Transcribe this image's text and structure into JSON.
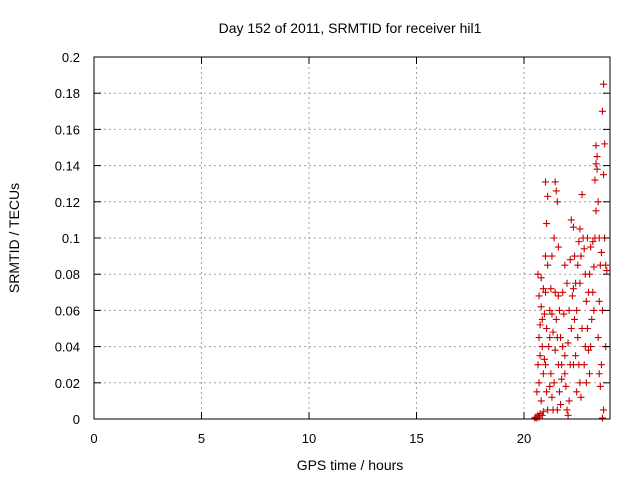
{
  "chart_data": {
    "type": "scatter",
    "title": "Day 152 of 2011, SRMTID for receiver hil1",
    "xlabel": "GPS time / hours",
    "ylabel": "SRMTID / TECUs",
    "xlim": [
      0,
      24
    ],
    "ylim": [
      0,
      0.2
    ],
    "x_ticks": [
      0,
      5,
      10,
      15,
      20
    ],
    "y_ticks": [
      0,
      0.02,
      0.04,
      0.06,
      0.08,
      0.1,
      0.12,
      0.14,
      0.16,
      0.18,
      0.2
    ],
    "grid": true,
    "marker": "+",
    "color": "#cc0000",
    "series": [
      {
        "points": [
          [
            20.5,
            0.0
          ],
          [
            20.55,
            0.001
          ],
          [
            20.6,
            0.0
          ],
          [
            20.65,
            0.002
          ],
          [
            20.7,
            0.001
          ],
          [
            20.75,
            0.003
          ],
          [
            20.85,
            0.002
          ],
          [
            20.9,
            0.004
          ],
          [
            20.6,
            0.015
          ],
          [
            20.65,
            0.03
          ],
          [
            20.7,
            0.045
          ],
          [
            20.75,
            0.052
          ],
          [
            20.8,
            0.062
          ],
          [
            20.7,
            0.068
          ],
          [
            20.65,
            0.08
          ],
          [
            20.8,
            0.078
          ],
          [
            20.9,
            0.072
          ],
          [
            20.95,
            0.058
          ],
          [
            20.85,
            0.04
          ],
          [
            20.9,
            0.025
          ],
          [
            20.7,
            0.02
          ],
          [
            20.8,
            0.01
          ],
          [
            20.75,
            0.035
          ],
          [
            20.85,
            0.055
          ],
          [
            21.0,
            0.131
          ],
          [
            21.1,
            0.123
          ],
          [
            21.05,
            0.108
          ],
          [
            21.0,
            0.09
          ],
          [
            21.1,
            0.085
          ],
          [
            21.0,
            0.07
          ],
          [
            21.05,
            0.05
          ],
          [
            21.0,
            0.03
          ],
          [
            21.05,
            0.015
          ],
          [
            21.1,
            0.005
          ],
          [
            21.15,
            0.04
          ],
          [
            21.2,
            0.06
          ],
          [
            21.25,
            0.072
          ],
          [
            21.3,
            0.058
          ],
          [
            21.2,
            0.045
          ],
          [
            21.25,
            0.025
          ],
          [
            21.3,
            0.012
          ],
          [
            21.35,
            0.005
          ],
          [
            21.4,
            0.02
          ],
          [
            21.45,
            0.038
          ],
          [
            21.5,
            0.055
          ],
          [
            21.45,
            0.07
          ],
          [
            21.5,
            0.126
          ],
          [
            21.45,
            0.131
          ],
          [
            21.55,
            0.12
          ],
          [
            21.6,
            0.068
          ],
          [
            21.55,
            0.045
          ],
          [
            21.6,
            0.03
          ],
          [
            21.65,
            0.015
          ],
          [
            21.7,
            0.008
          ],
          [
            21.75,
            0.022
          ],
          [
            21.8,
            0.04
          ],
          [
            21.85,
            0.058
          ],
          [
            21.9,
            0.035
          ],
          [
            21.95,
            0.018
          ],
          [
            22.0,
            0.005
          ],
          [
            22.05,
            0.002
          ],
          [
            22.1,
            0.01
          ],
          [
            22.15,
            0.03
          ],
          [
            22.2,
            0.05
          ],
          [
            22.25,
            0.068
          ],
          [
            22.3,
            0.072
          ],
          [
            22.2,
            0.11
          ],
          [
            22.3,
            0.106
          ],
          [
            22.35,
            0.09
          ],
          [
            22.4,
            0.075
          ],
          [
            22.45,
            0.06
          ],
          [
            22.5,
            0.045
          ],
          [
            22.55,
            0.03
          ],
          [
            22.6,
            0.02
          ],
          [
            22.65,
            0.012
          ],
          [
            22.5,
            0.085
          ],
          [
            22.55,
            0.098
          ],
          [
            22.6,
            0.105
          ],
          [
            22.65,
            0.09
          ],
          [
            22.7,
            0.124
          ],
          [
            22.75,
            0.1
          ],
          [
            22.8,
            0.094
          ],
          [
            22.85,
            0.08
          ],
          [
            22.9,
            0.065
          ],
          [
            22.95,
            0.05
          ],
          [
            23.0,
            0.038
          ],
          [
            23.05,
            0.025
          ],
          [
            23.1,
            0.04
          ],
          [
            23.15,
            0.055
          ],
          [
            23.2,
            0.07
          ],
          [
            23.25,
            0.084
          ],
          [
            23.3,
            0.1
          ],
          [
            23.35,
            0.115
          ],
          [
            23.3,
            0.132
          ],
          [
            23.35,
            0.141
          ],
          [
            23.4,
            0.145
          ],
          [
            23.35,
            0.151
          ],
          [
            23.4,
            0.138
          ],
          [
            23.45,
            0.12
          ],
          [
            23.5,
            0.1
          ],
          [
            23.55,
            0.085
          ],
          [
            23.5,
            0.065
          ],
          [
            23.45,
            0.045
          ],
          [
            23.5,
            0.025
          ],
          [
            23.55,
            0.018
          ],
          [
            23.6,
            0.03
          ],
          [
            23.65,
            0.06
          ],
          [
            23.6,
            0.092
          ],
          [
            23.65,
            0.17
          ],
          [
            23.7,
            0.185
          ],
          [
            23.75,
            0.152
          ],
          [
            23.7,
            0.135
          ],
          [
            23.75,
            0.1
          ],
          [
            23.8,
            0.085
          ],
          [
            23.85,
            0.082
          ],
          [
            23.8,
            0.04
          ],
          [
            23.7,
            0.005
          ],
          [
            23.65,
            0.0
          ],
          [
            21.3,
            0.09
          ],
          [
            21.4,
            0.1
          ],
          [
            21.6,
            0.095
          ],
          [
            21.9,
            0.085
          ],
          [
            22.0,
            0.075
          ],
          [
            22.1,
            0.06
          ],
          [
            21.9,
            0.025
          ],
          [
            21.7,
            0.045
          ],
          [
            22.4,
            0.035
          ],
          [
            22.7,
            0.05
          ],
          [
            22.9,
            0.02
          ],
          [
            23.0,
            0.07
          ],
          [
            23.1,
            0.095
          ],
          [
            22.85,
            0.04
          ],
          [
            22.6,
            0.075
          ],
          [
            22.3,
            0.03
          ],
          [
            21.55,
            0.005
          ],
          [
            21.65,
            0.06
          ],
          [
            21.8,
            0.07
          ],
          [
            22.05,
            0.042
          ],
          [
            22.45,
            0.015
          ],
          [
            22.95,
            0.1
          ],
          [
            23.2,
            0.098
          ],
          [
            23.25,
            0.06
          ],
          [
            20.95,
            0.033
          ],
          [
            21.2,
            0.018
          ],
          [
            21.35,
            0.048
          ],
          [
            21.75,
            0.03
          ],
          [
            22.15,
            0.088
          ],
          [
            22.35,
            0.055
          ],
          [
            22.8,
            0.03
          ],
          [
            23.05,
            0.08
          ]
        ]
      }
    ]
  }
}
